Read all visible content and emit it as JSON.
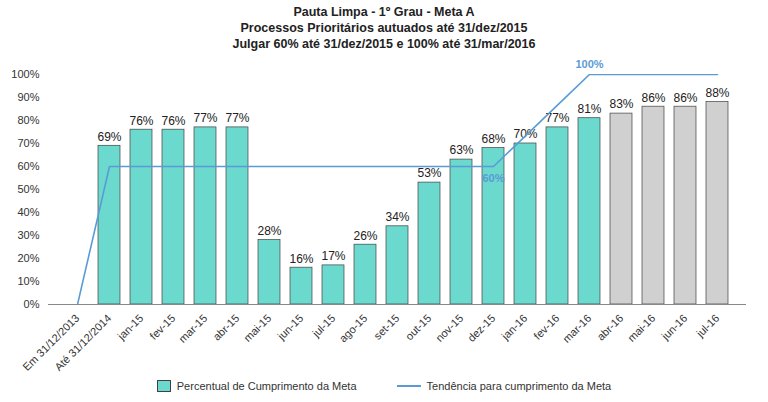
{
  "chart_data": {
    "type": "bar",
    "title": "Pauta Limpa - 1º Grau - Meta A",
    "subtitle": [
      "Processos Prioritários autuados até 31/dez/2015",
      "Julgar 60% até 31/dez/2015 e 100% até 31/mar/2016"
    ],
    "categories": [
      "Em 31/12/2013",
      "Até 31/12/2014",
      "jan-15",
      "fev-15",
      "mar-15",
      "abr-15",
      "mai-15",
      "jun-15",
      "jul-15",
      "ago-15",
      "set-15",
      "out-15",
      "nov-15",
      "dez-15",
      "jan-16",
      "fev-16",
      "mar-16",
      "abr-16",
      "mai-16",
      "jun-16",
      "jul-16"
    ],
    "series": [
      {
        "name": "Percentual de Cumprimento da Meta",
        "type": "bar",
        "values": [
          null,
          69,
          76,
          76,
          77,
          77,
          28,
          16,
          17,
          26,
          34,
          53,
          63,
          68,
          70,
          77,
          81,
          83,
          86,
          86,
          88
        ],
        "value_labels": [
          null,
          "69%",
          "76%",
          "76%",
          "77%",
          "77%",
          "28%",
          "16%",
          "17%",
          "26%",
          "34%",
          "53%",
          "63%",
          "68%",
          "70%",
          "77%",
          "81%",
          "83%",
          "86%",
          "86%",
          "88%"
        ],
        "colors": [
          null,
          "#6bd9cd",
          "#6bd9cd",
          "#6bd9cd",
          "#6bd9cd",
          "#6bd9cd",
          "#6bd9cd",
          "#6bd9cd",
          "#6bd9cd",
          "#6bd9cd",
          "#6bd9cd",
          "#6bd9cd",
          "#6bd9cd",
          "#6bd9cd",
          "#6bd9cd",
          "#6bd9cd",
          "#6bd9cd",
          "#d0d0d0",
          "#d0d0d0",
          "#d0d0d0",
          "#d0d0d0"
        ]
      },
      {
        "name": "Tendência para cumprimento da Meta",
        "type": "line",
        "color": "#5b9bd5",
        "values": [
          0,
          60,
          60,
          60,
          60,
          60,
          60,
          60,
          60,
          60,
          60,
          60,
          60,
          60,
          73.3,
          86.7,
          100,
          100,
          100,
          100,
          100
        ]
      }
    ],
    "annotations": [
      {
        "text": "60%",
        "x": "dez-15",
        "y": 60
      },
      {
        "text": "100%",
        "x": "mar-16",
        "y": 100
      }
    ],
    "ylim": [
      0,
      100
    ],
    "yticks": [
      {
        "value": 0,
        "label": "0%"
      },
      {
        "value": 10,
        "label": "10%"
      },
      {
        "value": 20,
        "label": "20%"
      },
      {
        "value": 30,
        "label": "30%"
      },
      {
        "value": 40,
        "label": "40%"
      },
      {
        "value": 50,
        "label": "50%"
      },
      {
        "value": 60,
        "label": "60%"
      },
      {
        "value": 70,
        "label": "70%"
      },
      {
        "value": 80,
        "label": "80%"
      },
      {
        "value": 90,
        "label": "90%"
      },
      {
        "value": 100,
        "label": "100%"
      }
    ],
    "grid": false,
    "data_labels": true,
    "legend": "bottom"
  }
}
